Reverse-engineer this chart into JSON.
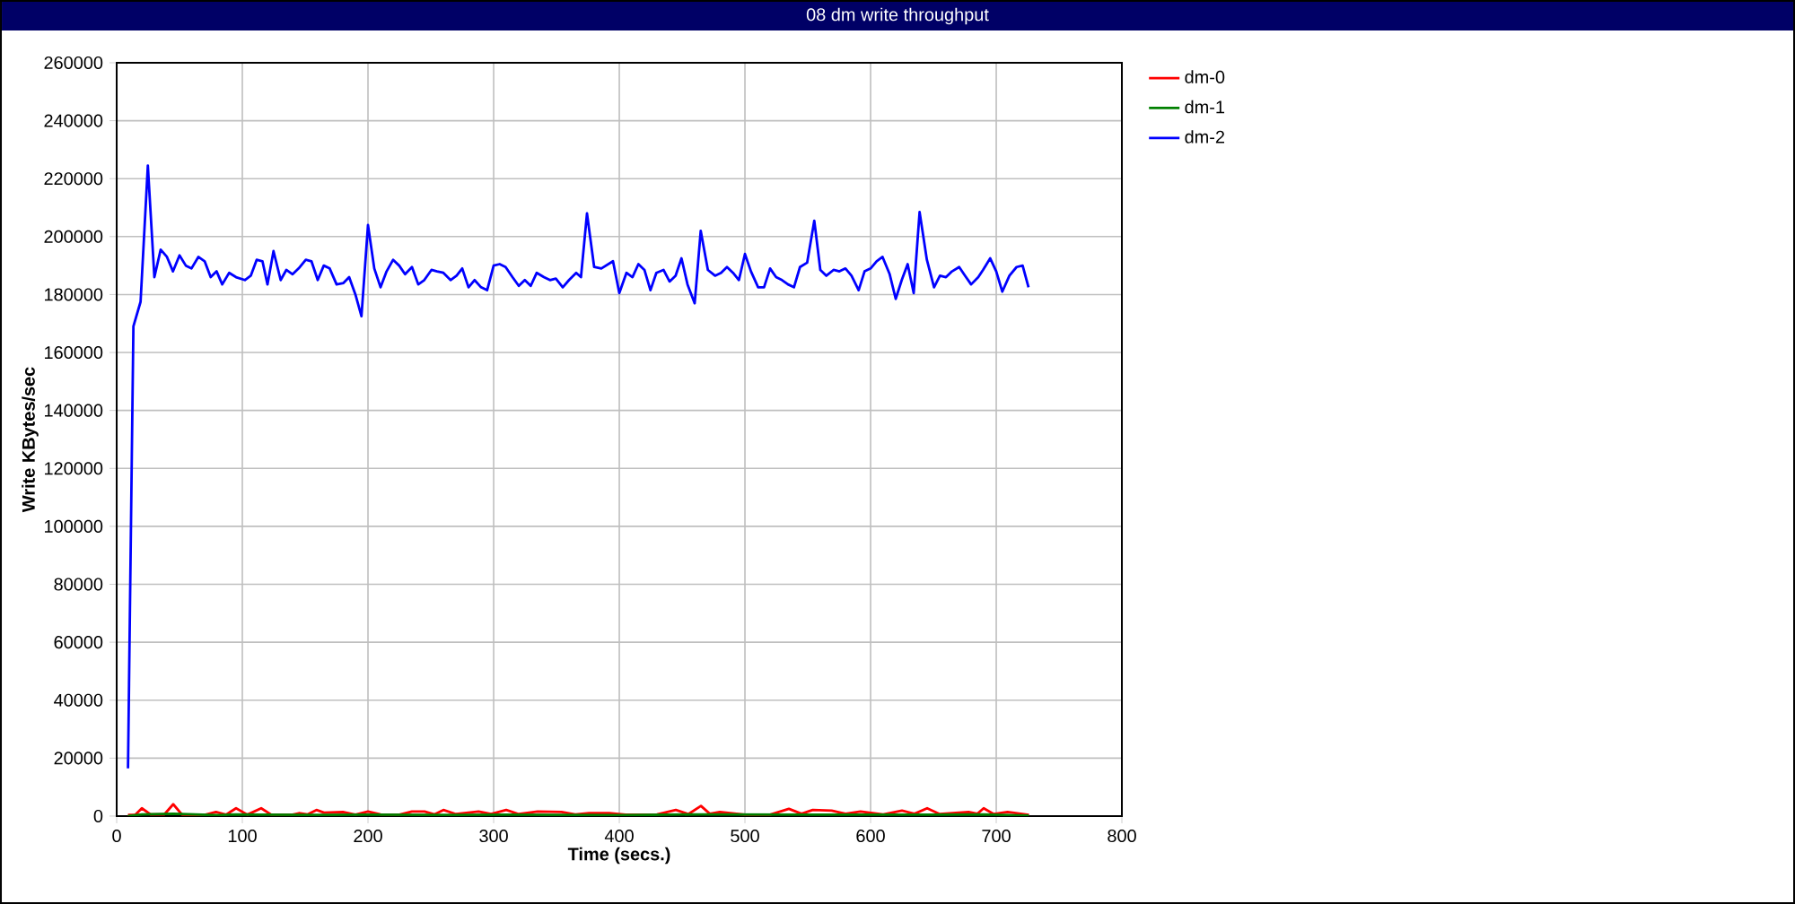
{
  "chart_data": {
    "type": "line",
    "title": "08 dm write throughput",
    "xlabel": "Time (secs.)",
    "ylabel": "Write KBytes/sec",
    "xlim": [
      0,
      800
    ],
    "ylim": [
      0,
      260000
    ],
    "xticks": [
      0,
      100,
      200,
      300,
      400,
      500,
      600,
      700,
      800
    ],
    "yticks": [
      0,
      20000,
      40000,
      60000,
      80000,
      100000,
      120000,
      140000,
      160000,
      180000,
      200000,
      220000,
      240000,
      260000
    ],
    "grid": true,
    "legend": "right",
    "marker": "none",
    "line_style": "solid",
    "series": [
      {
        "name": "dm-0",
        "color": "#ff0000",
        "x": [
          9,
          15,
          20,
          27,
          38,
          45,
          52,
          70,
          79,
          87,
          95,
          104,
          115,
          123,
          140,
          145,
          152,
          159,
          165,
          180,
          190,
          200,
          210,
          225,
          235,
          245,
          253,
          260,
          270,
          288,
          298,
          310,
          320,
          335,
          354,
          365,
          376,
          392,
          405,
          430,
          445,
          455,
          465,
          472,
          480,
          500,
          520,
          535,
          545,
          554,
          569,
          580,
          592,
          610,
          625,
          635,
          645,
          655,
          678,
          685,
          690,
          698,
          709,
          726
        ],
        "values": [
          400,
          500,
          2700,
          600,
          600,
          4100,
          500,
          400,
          1400,
          500,
          2700,
          500,
          2700,
          500,
          500,
          1000,
          600,
          2100,
          1200,
          1400,
          500,
          1600,
          600,
          500,
          1600,
          1600,
          600,
          2100,
          700,
          1600,
          700,
          2100,
          700,
          1600,
          1400,
          600,
          1000,
          1000,
          500,
          600,
          2100,
          700,
          3500,
          800,
          1400,
          500,
          500,
          2500,
          800,
          2100,
          1900,
          800,
          1600,
          600,
          1900,
          800,
          2700,
          700,
          1400,
          800,
          2700,
          700,
          1400,
          400
        ]
      },
      {
        "name": "dm-1",
        "color": "#008000",
        "x": [
          9,
          20,
          45,
          80,
          95,
          115,
          160,
          200,
          260,
          310,
          400,
          465,
          555,
          645,
          690,
          726
        ],
        "values": [
          0,
          600,
          800,
          300,
          600,
          500,
          400,
          500,
          400,
          500,
          300,
          600,
          500,
          500,
          600,
          200
        ]
      },
      {
        "name": "dm-2",
        "color": "#0000ff",
        "x": [
          9,
          13.3,
          19,
          24.8,
          30,
          35,
          40,
          44.8,
          50,
          55,
          59.5,
          65,
          70,
          74.8,
          79.5,
          84,
          89.5,
          95,
          102,
          106.7,
          111.4,
          116,
          120,
          124.8,
          130.5,
          135,
          140,
          144.8,
          150.5,
          155,
          160,
          164.8,
          169.5,
          175,
          180.5,
          185,
          190,
          194.8,
          200,
          205,
          210,
          214.8,
          220,
          224.8,
          229.5,
          235,
          240,
          244.8,
          250.5,
          255,
          260,
          265.7,
          270.5,
          275,
          280,
          284.8,
          290,
          294.8,
          300,
          304.8,
          309.5,
          315,
          320,
          324.8,
          329.5,
          334.3,
          340,
          344.8,
          349.5,
          355,
          360,
          365.7,
          369.5,
          374.3,
          380,
          385.7,
          395,
          400,
          405.7,
          410.5,
          415.2,
          420,
          424.8,
          429.5,
          435.2,
          440,
          444.8,
          449.5,
          454.3,
          460,
          464.8,
          470.5,
          476.2,
          481,
          485.7,
          490.5,
          495.2,
          500,
          504.8,
          510.5,
          515.2,
          520,
          524.8,
          529.5,
          534.3,
          539,
          543.8,
          549.5,
          555.2,
          560,
          564.8,
          570.5,
          575.2,
          580,
          584.8,
          590.5,
          595.2,
          600,
          604.8,
          609.5,
          615.2,
          620,
          624.8,
          629.5,
          634.3,
          639,
          644.8,
          650.5,
          655.2,
          660,
          664.8,
          670.5,
          675.2,
          680,
          685.7,
          689.5,
          695.2,
          700,
          704.8,
          710.5,
          716.2,
          721,
          725.7
        ],
        "values": [
          16500,
          169000,
          177500,
          224500,
          186000,
          195500,
          193000,
          188000,
          193500,
          190000,
          189000,
          193000,
          191500,
          186000,
          188000,
          183500,
          187500,
          186000,
          185000,
          186500,
          192000,
          191500,
          183500,
          195000,
          185000,
          188500,
          187000,
          189000,
          192000,
          191500,
          185000,
          190000,
          189000,
          183500,
          184000,
          186000,
          180000,
          172500,
          204000,
          189000,
          182500,
          188000,
          192000,
          190000,
          187000,
          189500,
          183500,
          185000,
          188500,
          188000,
          187500,
          185000,
          186500,
          189000,
          182500,
          185000,
          182500,
          181500,
          190000,
          190500,
          189500,
          186000,
          183000,
          185000,
          183000,
          187500,
          186000,
          185000,
          185500,
          182500,
          185000,
          187500,
          186000,
          208000,
          189500,
          189000,
          191500,
          180500,
          187500,
          186000,
          190500,
          188500,
          181500,
          187500,
          188500,
          184500,
          186500,
          192500,
          183500,
          177000,
          202000,
          188500,
          186500,
          187500,
          189500,
          187500,
          185000,
          194000,
          188000,
          182500,
          182500,
          189000,
          186000,
          185000,
          183500,
          182500,
          189500,
          191000,
          205500,
          188500,
          186500,
          188500,
          188000,
          189000,
          186500,
          181500,
          188000,
          189000,
          191500,
          193000,
          187000,
          178500,
          185000,
          190500,
          180500,
          208500,
          192000,
          182500,
          186500,
          186000,
          188000,
          189500,
          186500,
          183500,
          186000,
          188500,
          192500,
          188000,
          181000,
          186500,
          189500,
          190000,
          182500
        ]
      }
    ]
  }
}
